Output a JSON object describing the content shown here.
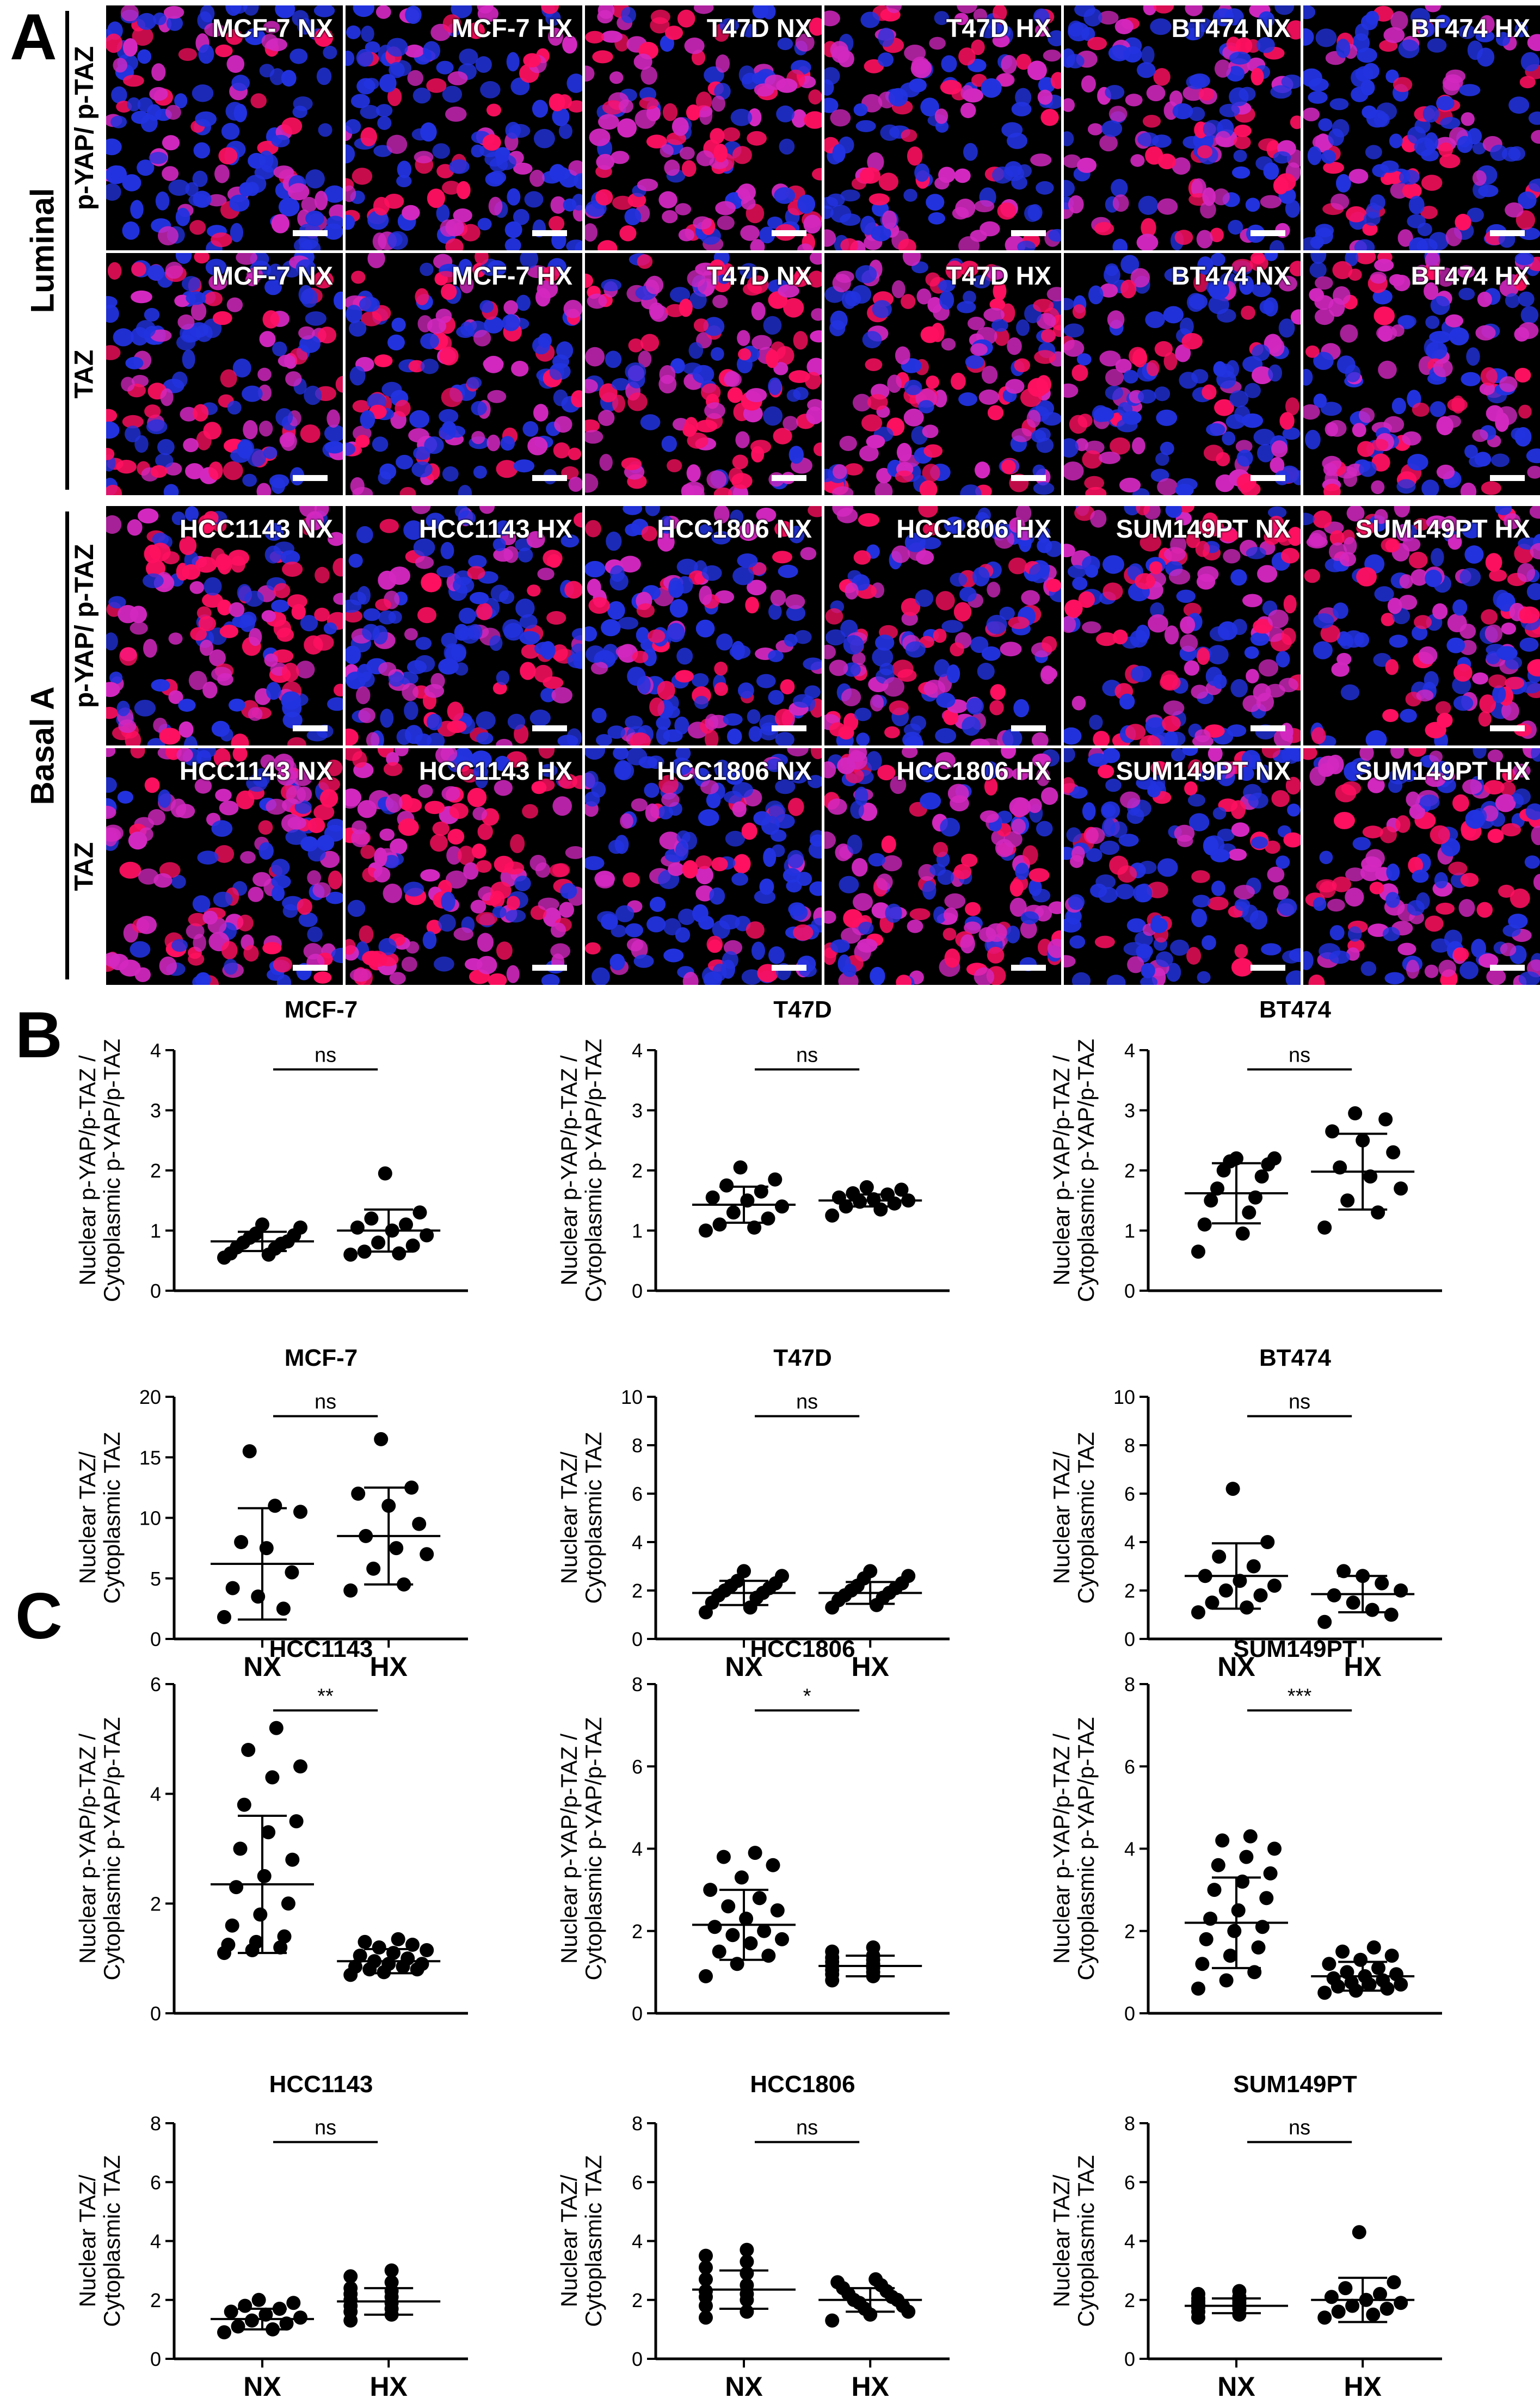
{
  "panels": {
    "a": "A",
    "b": "B",
    "c": "C"
  },
  "colors": {
    "nucleus": "#2233e0",
    "stain": "#ff1060",
    "mixed": "#d328c0"
  },
  "micrographs": {
    "groups": [
      {
        "name": "Luminal",
        "rows": [
          {
            "stain": "p-YAP/ p-TAZ",
            "tiles": [
              "MCF-7 NX",
              "MCF-7 HX",
              "T47D NX",
              "T47D HX",
              "BT474 NX",
              "BT474 HX"
            ]
          },
          {
            "stain": "TAZ",
            "tiles": [
              "MCF-7 NX",
              "MCF-7 HX",
              "T47D NX",
              "T47D HX",
              "BT474 NX",
              "BT474 HX"
            ]
          }
        ]
      },
      {
        "name": "Basal A",
        "rows": [
          {
            "stain": "p-YAP/ p-TAZ",
            "tiles": [
              "HCC1143 NX",
              "HCC1143 HX",
              "HCC1806 NX",
              "HCC1806 HX",
              "SUM149PT NX",
              "SUM149PT HX"
            ]
          },
          {
            "stain": "TAZ",
            "tiles": [
              "HCC1143 NX",
              "HCC1143 HX",
              "HCC1806 NX",
              "HCC1806 HX",
              "SUM149PT NX",
              "SUM149PT HX"
            ]
          }
        ]
      }
    ]
  },
  "chart_data": [
    {
      "type": "scatter",
      "title": "MCF-7",
      "ylabel": [
        "Nuclear p-YAP/p-TAZ /",
        "Cytoplasmic  p-YAP/p-TAZ"
      ],
      "ylim": [
        0,
        4
      ],
      "yticks": [
        0,
        1,
        2,
        3,
        4
      ],
      "categories": [
        "NX",
        "HX"
      ],
      "show_xticks": false,
      "significance": "ns",
      "series": [
        {
          "name": "NX",
          "values": [
            0.55,
            0.6,
            0.62,
            0.7,
            0.72,
            0.78,
            0.8,
            0.82,
            0.88,
            0.92,
            0.95,
            1.05,
            1.1
          ],
          "mean": 0.82,
          "sd": 0.16
        },
        {
          "name": "HX",
          "values": [
            0.6,
            0.62,
            0.65,
            0.75,
            0.8,
            0.92,
            1.0,
            1.05,
            1.1,
            1.2,
            1.3,
            1.95
          ],
          "mean": 1.0,
          "sd": 0.35
        }
      ]
    },
    {
      "type": "scatter",
      "title": "T47D",
      "ylabel": [
        "Nuclear p-YAP/p-TAZ /",
        "Cytoplasmic  p-YAP/p-TAZ"
      ],
      "ylim": [
        0,
        4
      ],
      "yticks": [
        0,
        1,
        2,
        3,
        4
      ],
      "categories": [
        "NX",
        "HX"
      ],
      "show_xticks": false,
      "significance": "ns",
      "series": [
        {
          "name": "NX",
          "values": [
            1.0,
            1.05,
            1.1,
            1.2,
            1.3,
            1.4,
            1.5,
            1.55,
            1.65,
            1.75,
            1.85,
            2.05
          ],
          "mean": 1.43,
          "sd": 0.3
        },
        {
          "name": "HX",
          "values": [
            1.25,
            1.35,
            1.4,
            1.45,
            1.48,
            1.5,
            1.52,
            1.55,
            1.6,
            1.62,
            1.68,
            1.72
          ],
          "mean": 1.5,
          "sd": 0.1
        }
      ]
    },
    {
      "type": "scatter",
      "title": "BT474",
      "ylabel": [
        "Nuclear p-YAP/p-TAZ /",
        "Cytoplasmic  p-YAP/p-TAZ"
      ],
      "ylim": [
        0,
        4
      ],
      "yticks": [
        0,
        1,
        2,
        3,
        4
      ],
      "categories": [
        "NX",
        "HX"
      ],
      "show_xticks": false,
      "significance": "ns",
      "series": [
        {
          "name": "NX",
          "values": [
            0.65,
            0.95,
            1.1,
            1.3,
            1.5,
            1.55,
            1.7,
            1.9,
            2.0,
            2.1,
            2.15,
            2.2,
            2.2
          ],
          "mean": 1.62,
          "sd": 0.5
        },
        {
          "name": "HX",
          "values": [
            1.05,
            1.3,
            1.5,
            1.7,
            1.9,
            2.05,
            2.3,
            2.5,
            2.65,
            2.85,
            2.95
          ],
          "mean": 1.98,
          "sd": 0.63
        }
      ]
    },
    {
      "type": "scatter",
      "title": "MCF-7",
      "ylabel": [
        "Nuclear TAZ/",
        "Cytoplasmic TAZ"
      ],
      "ylim": [
        0,
        20
      ],
      "yticks": [
        0,
        5,
        10,
        15,
        20
      ],
      "categories": [
        "NX",
        "HX"
      ],
      "show_xticks": true,
      "significance": "ns",
      "series": [
        {
          "name": "NX",
          "values": [
            1.8,
            2.5,
            3.5,
            4.2,
            5.5,
            7.5,
            8.0,
            10.5,
            11.0,
            15.5
          ],
          "mean": 6.2,
          "sd": 4.6
        },
        {
          "name": "HX",
          "values": [
            4.0,
            4.5,
            5.8,
            7.0,
            7.5,
            8.5,
            9.5,
            11.0,
            12.0,
            12.5,
            16.5
          ],
          "mean": 8.5,
          "sd": 4.0
        }
      ]
    },
    {
      "type": "scatter",
      "title": "T47D",
      "ylabel": [
        "Nuclear TAZ/",
        "Cytoplasmic TAZ"
      ],
      "ylim": [
        0,
        10
      ],
      "yticks": [
        0,
        2,
        4,
        6,
        8,
        10
      ],
      "categories": [
        "NX",
        "HX"
      ],
      "show_xticks": true,
      "significance": "ns",
      "series": [
        {
          "name": "NX",
          "values": [
            1.1,
            1.3,
            1.5,
            1.7,
            1.8,
            1.9,
            2.0,
            2.1,
            2.2,
            2.3,
            2.4,
            2.6,
            2.8
          ],
          "mean": 1.9,
          "sd": 0.5
        },
        {
          "name": "HX",
          "values": [
            1.3,
            1.4,
            1.6,
            1.7,
            1.8,
            1.9,
            2.0,
            2.1,
            2.2,
            2.3,
            2.5,
            2.6,
            2.8
          ],
          "mean": 1.9,
          "sd": 0.45
        }
      ]
    },
    {
      "type": "scatter",
      "title": "BT474",
      "ylabel": [
        "Nuclear TAZ/",
        "Cytoplasmic TAZ"
      ],
      "ylim": [
        0,
        10
      ],
      "yticks": [
        0,
        2,
        4,
        6,
        8,
        10
      ],
      "categories": [
        "NX",
        "HX"
      ],
      "show_xticks": true,
      "significance": "ns",
      "series": [
        {
          "name": "NX",
          "values": [
            1.1,
            1.3,
            1.5,
            1.8,
            2.0,
            2.2,
            2.4,
            2.6,
            3.0,
            3.4,
            4.0,
            6.2
          ],
          "mean": 2.6,
          "sd": 1.35
        },
        {
          "name": "HX",
          "values": [
            0.7,
            1.0,
            1.2,
            1.5,
            1.8,
            2.0,
            2.3,
            2.6,
            2.8
          ],
          "mean": 1.85,
          "sd": 0.75
        }
      ]
    },
    {
      "type": "scatter",
      "title": "HCC1143",
      "ylabel": [
        "Nuclear p-YAP/p-TAZ /",
        "Cytoplasmic  p-YAP/p-TAZ"
      ],
      "ylim": [
        0,
        6
      ],
      "yticks": [
        0,
        2,
        4,
        6
      ],
      "categories": [
        "NX",
        "HX"
      ],
      "show_xticks": false,
      "significance": "**",
      "series": [
        {
          "name": "NX",
          "values": [
            1.1,
            1.15,
            1.2,
            1.25,
            1.3,
            1.4,
            1.6,
            1.8,
            2.0,
            2.3,
            2.5,
            2.8,
            3.0,
            3.3,
            3.5,
            3.8,
            4.3,
            4.5,
            4.8,
            5.2
          ],
          "mean": 2.35,
          "sd": 1.25
        },
        {
          "name": "HX",
          "values": [
            0.7,
            0.75,
            0.8,
            0.8,
            0.85,
            0.85,
            0.9,
            0.9,
            0.95,
            1.0,
            1.05,
            1.1,
            1.15,
            1.2,
            1.25,
            1.3,
            1.35
          ],
          "mean": 0.95,
          "sd": 0.22
        }
      ]
    },
    {
      "type": "scatter",
      "title": "HCC1806",
      "ylabel": [
        "Nuclear p-YAP/p-TAZ /",
        "Cytoplasmic  p-YAP/p-TAZ"
      ],
      "ylim": [
        0,
        8
      ],
      "yticks": [
        0,
        2,
        4,
        6,
        8
      ],
      "categories": [
        "NX",
        "HX"
      ],
      "show_xticks": false,
      "significance": "*",
      "series": [
        {
          "name": "NX",
          "values": [
            0.9,
            1.2,
            1.4,
            1.5,
            1.7,
            1.8,
            1.9,
            2.0,
            2.1,
            2.3,
            2.5,
            2.6,
            2.8,
            3.0,
            3.3,
            3.6,
            3.8,
            3.9
          ],
          "mean": 2.15,
          "sd": 0.85
        },
        {
          "name": "HX",
          "values": [
            0.8,
            0.9,
            0.95,
            1.0,
            1.05,
            1.1,
            1.15,
            1.2,
            1.25,
            1.3,
            1.35,
            1.4,
            1.5,
            1.6
          ],
          "mean": 1.15,
          "sd": 0.25
        }
      ]
    },
    {
      "type": "scatter",
      "title": "SUM149PT",
      "ylabel": [
        "Nuclear p-YAP/p-TAZ /",
        "Cytoplasmic  p-YAP/p-TAZ"
      ],
      "ylim": [
        0,
        8
      ],
      "yticks": [
        0,
        2,
        4,
        6,
        8
      ],
      "categories": [
        "NX",
        "HX"
      ],
      "show_xticks": false,
      "significance": "***",
      "series": [
        {
          "name": "NX",
          "values": [
            0.6,
            0.8,
            1.0,
            1.2,
            1.4,
            1.6,
            1.8,
            2.0,
            2.1,
            2.3,
            2.5,
            2.8,
            3.0,
            3.2,
            3.4,
            3.6,
            3.8,
            4.0,
            4.2,
            4.3
          ],
          "mean": 2.2,
          "sd": 1.1
        },
        {
          "name": "HX",
          "values": [
            0.5,
            0.55,
            0.6,
            0.65,
            0.7,
            0.7,
            0.75,
            0.8,
            0.85,
            0.9,
            0.95,
            1.0,
            1.1,
            1.2,
            1.3,
            1.4,
            1.5,
            1.6
          ],
          "mean": 0.9,
          "sd": 0.35
        }
      ]
    },
    {
      "type": "scatter",
      "title": "HCC1143",
      "ylabel": [
        "Nuclear TAZ/",
        "Cytoplasmic TAZ"
      ],
      "ylim": [
        0,
        8
      ],
      "yticks": [
        0,
        2,
        4,
        6,
        8
      ],
      "categories": [
        "NX",
        "HX"
      ],
      "show_xticks": true,
      "significance": "ns",
      "series": [
        {
          "name": "NX",
          "values": [
            0.9,
            1.0,
            1.1,
            1.2,
            1.3,
            1.4,
            1.5,
            1.6,
            1.7,
            1.8,
            1.9,
            2.0
          ],
          "mean": 1.35,
          "sd": 0.35
        },
        {
          "name": "HX",
          "values": [
            1.3,
            1.5,
            1.6,
            1.7,
            1.8,
            1.9,
            2.0,
            2.1,
            2.2,
            2.3,
            2.4,
            2.6,
            2.8,
            3.0
          ],
          "mean": 1.95,
          "sd": 0.45
        }
      ]
    },
    {
      "type": "scatter",
      "title": "HCC1806",
      "ylabel": [
        "Nuclear TAZ/",
        "Cytoplasmic TAZ"
      ],
      "ylim": [
        0,
        8
      ],
      "yticks": [
        0,
        2,
        4,
        6,
        8
      ],
      "categories": [
        "NX",
        "HX"
      ],
      "show_xticks": true,
      "significance": "ns",
      "series": [
        {
          "name": "NX",
          "values": [
            1.4,
            1.6,
            1.8,
            2.0,
            2.1,
            2.2,
            2.3,
            2.5,
            2.7,
            2.9,
            3.1,
            3.3,
            3.5,
            3.7
          ],
          "mean": 2.35,
          "sd": 0.65
        },
        {
          "name": "HX",
          "values": [
            1.3,
            1.5,
            1.6,
            1.7,
            1.8,
            1.9,
            2.0,
            2.0,
            2.1,
            2.2,
            2.3,
            2.4,
            2.5,
            2.6,
            2.7
          ],
          "mean": 2.0,
          "sd": 0.4
        }
      ]
    },
    {
      "type": "scatter",
      "title": "SUM149PT",
      "ylabel": [
        "Nuclear TAZ/",
        "Cytoplasmic TAZ"
      ],
      "ylim": [
        0,
        8
      ],
      "yticks": [
        0,
        2,
        4,
        6,
        8
      ],
      "categories": [
        "NX",
        "HX"
      ],
      "show_xticks": true,
      "significance": "ns",
      "series": [
        {
          "name": "NX",
          "values": [
            1.4,
            1.5,
            1.6,
            1.7,
            1.75,
            1.8,
            1.85,
            1.9,
            1.95,
            2.0,
            2.05,
            2.1,
            2.2,
            2.3
          ],
          "mean": 1.8,
          "sd": 0.25
        },
        {
          "name": "HX",
          "values": [
            1.4,
            1.5,
            1.6,
            1.7,
            1.8,
            1.9,
            2.0,
            2.1,
            2.2,
            2.4,
            2.6,
            4.3
          ],
          "mean": 2.0,
          "sd": 0.75
        }
      ]
    }
  ]
}
